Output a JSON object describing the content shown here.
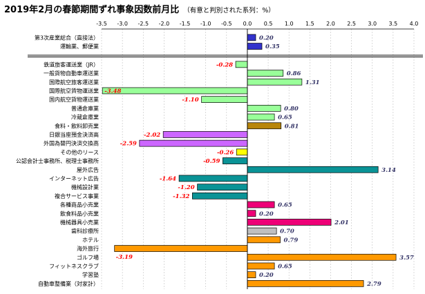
{
  "chart_data": {
    "type": "bar",
    "orientation": "horizontal",
    "title": "2019年2月の春節期間ずれ事象因数前月比",
    "subtitle": "（有意と判別された系列：%）",
    "xlim": [
      -3.5,
      4.0
    ],
    "ticks": [
      "-3.5",
      "-3.0",
      "-2.5",
      "-2.0",
      "-1.5",
      "-1.0",
      "-0.5",
      "0.0",
      "0.5",
      "1.0",
      "1.5",
      "2.0",
      "2.5",
      "3.0",
      "3.5",
      "4.0"
    ],
    "grid": true,
    "legend": "none",
    "groups": [
      {
        "items": [
          {
            "label": "第3次産業総合（直接法）",
            "value": 0.2,
            "color": "#3333cc"
          },
          {
            "label": "運輸業、郵便業",
            "value": 0.35,
            "color": "#3333cc"
          }
        ]
      },
      {
        "items": [
          {
            "label": "鉄道旅客運送業（JR）",
            "value": -0.28,
            "color": "#99ff99"
          },
          {
            "label": "一般貨物自動車運送業",
            "value": 0.86,
            "color": "#99ff99"
          },
          {
            "label": "国際航空旅客運送業",
            "value": 1.31,
            "color": "#99ff99"
          },
          {
            "label": "国際航空貨物運送業",
            "value": -3.48,
            "color": "#99ff99"
          },
          {
            "label": "国内航空貨物運送業",
            "value": -1.1,
            "color": "#99ff99"
          },
          {
            "label": "普通倉庫業",
            "value": 0.8,
            "color": "#99ff99"
          },
          {
            "label": "冷蔵倉庫業",
            "value": 0.65,
            "color": "#99ff99"
          },
          {
            "label": "食料・飲料卸売業",
            "value": 0.81,
            "color": "#b8860b"
          },
          {
            "label": "日銀当座預金決済高",
            "value": -2.02,
            "color": "#cc66ff"
          },
          {
            "label": "外国為替円決済交換高",
            "value": -2.59,
            "color": "#cc66ff"
          },
          {
            "label": "その他のリース",
            "value": -0.26,
            "color": "#ffff00"
          },
          {
            "label": "公認会計士事務所、税理士事務所",
            "value": -0.59,
            "color": "#0a9396"
          },
          {
            "label": "屋外広告",
            "value": 3.14,
            "color": "#0a9396"
          },
          {
            "label": "インターネット広告",
            "value": -1.64,
            "color": "#0a9396"
          },
          {
            "label": "機械設計業",
            "value": -1.2,
            "color": "#0a9396"
          },
          {
            "label": "複合サービス事業",
            "value": -1.32,
            "color": "#0a9396"
          },
          {
            "label": "各種商品小売業",
            "value": 0.65,
            "color": "#ee0077"
          },
          {
            "label": "飲食料品小売業",
            "value": 0.2,
            "color": "#ee0077"
          },
          {
            "label": "機械器具小売業",
            "value": 2.01,
            "color": "#ee0077"
          },
          {
            "label": "歯科診療所",
            "value": 0.7,
            "color": "#c0c0c0"
          },
          {
            "label": "ホテル",
            "value": 0.79,
            "color": "#ff9900"
          },
          {
            "label": "海外旅行",
            "value": -3.19,
            "color": "#ff9900"
          },
          {
            "label": "ゴルフ場",
            "value": 3.57,
            "color": "#ff9900"
          },
          {
            "label": "フィットネスクラブ",
            "value": 0.65,
            "color": "#ff9900"
          },
          {
            "label": "学習塾",
            "value": 0.2,
            "color": "#ff9900"
          },
          {
            "label": "自動車整備業（対家計）",
            "value": 2.79,
            "color": "#ff9900"
          }
        ]
      }
    ],
    "colors": {
      "positive_label": "#333366",
      "negative_label": "#ff0000",
      "grid": "#c0c0c0"
    }
  }
}
